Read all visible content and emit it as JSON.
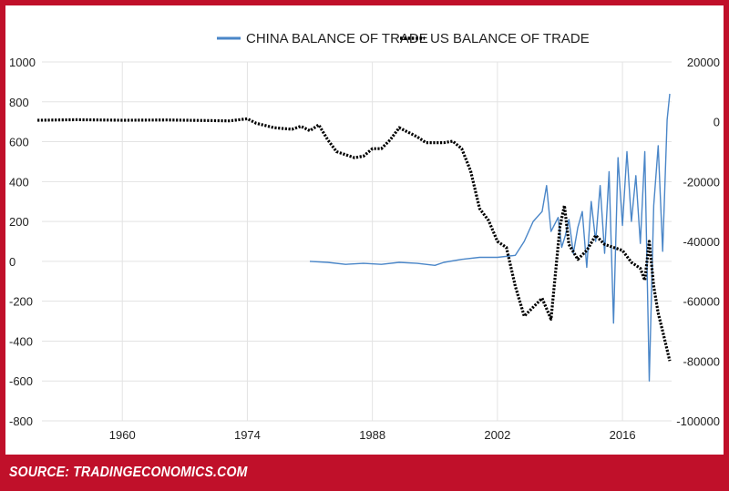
{
  "source": "SOURCE: TRADINGECONOMICS.COM",
  "colors": {
    "frame": "#c0102a",
    "china": "#4a86c8",
    "us": "#000000",
    "grid": "#e3e3e3"
  },
  "chart_data": {
    "type": "line",
    "title": "",
    "legend_position": "top",
    "grid": true,
    "x": {
      "ticks": [
        1960,
        1974,
        1988,
        2002,
        2016
      ],
      "range": [
        1951,
        2021.5
      ]
    },
    "y_left": {
      "ticks": [
        1000,
        800,
        600,
        400,
        200,
        0,
        -200,
        -400,
        -600,
        -800
      ],
      "range": [
        -800,
        1000
      ],
      "series": "CHINA BALANCE OF TRADE"
    },
    "y_right": {
      "ticks": [
        20000,
        0,
        -20000,
        -40000,
        -60000,
        -80000,
        -100000
      ],
      "range": [
        -100000,
        20000
      ],
      "series": "US BALANCE OF TRADE"
    },
    "series": [
      {
        "name": "CHINA BALANCE OF TRADE",
        "axis": "left",
        "color": "#4a86c8",
        "style": "solid",
        "x": [
          1981,
          1983,
          1985,
          1987,
          1989,
          1991,
          1993,
          1995,
          1996,
          1998,
          2000,
          2002,
          2004,
          2005,
          2006,
          2007,
          2007.5,
          2008,
          2008.8,
          2009.2,
          2009.6,
          2010,
          2010.5,
          2011,
          2011.5,
          2012,
          2012.5,
          2013,
          2013.5,
          2014,
          2014.5,
          2015,
          2015.5,
          2016,
          2016.5,
          2017,
          2017.5,
          2018,
          2018.5,
          2019,
          2019.5,
          2020,
          2020.5,
          2021,
          2021.3
        ],
        "y": [
          0,
          -5,
          -15,
          -10,
          -15,
          -5,
          -10,
          -20,
          -5,
          10,
          20,
          20,
          30,
          100,
          200,
          250,
          380,
          150,
          220,
          70,
          130,
          210,
          40,
          170,
          250,
          -30,
          300,
          100,
          380,
          40,
          450,
          -310,
          520,
          180,
          550,
          200,
          430,
          90,
          550,
          -600,
          280,
          580,
          50,
          710,
          840
        ]
      },
      {
        "name": "US BALANCE OF TRADE",
        "axis": "right",
        "color": "#000000",
        "style": "dotted",
        "x": [
          1950.5,
          1955,
          1960,
          1965,
          1970,
          1972,
          1974,
          1975,
          1977,
          1979,
          1980,
          1981,
          1982,
          1983,
          1984,
          1986,
          1987,
          1988,
          1989,
          1990,
          1991,
          1993,
          1994,
          1996,
          1997,
          1998,
          1999,
          2000,
          2001,
          2002,
          2003,
          2004,
          2005,
          2006,
          2007,
          2008,
          2009,
          2009.5,
          2010,
          2011,
          2012,
          2013,
          2014,
          2015,
          2016,
          2017,
          2018,
          2018.5,
          2019,
          2019.5,
          2020,
          2020.5,
          2021.3
        ],
        "y": [
          500,
          700,
          500,
          600,
          400,
          300,
          1000,
          -500,
          -2000,
          -2500,
          -1500,
          -3000,
          -1000,
          -6000,
          -10000,
          -12000,
          -11500,
          -9000,
          -9000,
          -6000,
          -2000,
          -5000,
          -7000,
          -7000,
          -6500,
          -9000,
          -16500,
          -29000,
          -33000,
          -40000,
          -42000,
          -55000,
          -65000,
          -62000,
          -59000,
          -66000,
          -35000,
          -28000,
          -41000,
          -46000,
          -43000,
          -38000,
          -41000,
          -42000,
          -43000,
          -47000,
          -49000,
          -53000,
          -40000,
          -55000,
          -64000,
          -70000,
          -80000
        ]
      }
    ]
  }
}
